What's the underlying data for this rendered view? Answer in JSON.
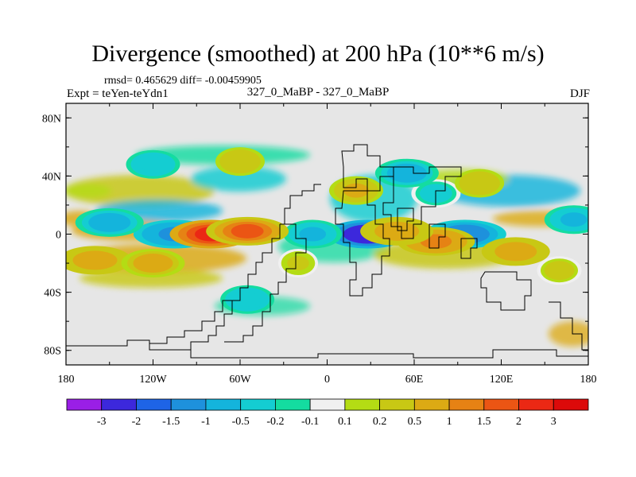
{
  "title": "Divergence (smoothed) at 200 hPa (10**6 m/s)",
  "stats_line": "rmsd= 0.465629 diff= -0.00459905",
  "expt_label": "Expt = teYen-teYdn1",
  "runs_label": "327_0_MaBP - 327_0_MaBP",
  "season": "DJF",
  "colors": {
    "background": "#ffffff",
    "map_fill": "#e6e6e6",
    "coast": "#000000"
  },
  "chart_data": {
    "type": "heatmap",
    "title": "Divergence (smoothed) at 200 hPa (10**6 m/s)",
    "xlabel": "",
    "ylabel": "",
    "xlim": [
      -180,
      180
    ],
    "ylim": [
      -90,
      90
    ],
    "x_ticks": [
      {
        "value": -180,
        "label": "180"
      },
      {
        "value": -120,
        "label": "120W"
      },
      {
        "value": -60,
        "label": "60W"
      },
      {
        "value": 0,
        "label": "0"
      },
      {
        "value": 60,
        "label": "60E"
      },
      {
        "value": 120,
        "label": "120E"
      },
      {
        "value": 180,
        "label": "180"
      }
    ],
    "y_ticks": [
      {
        "value": 80,
        "label": "80N"
      },
      {
        "value": 40,
        "label": "40N"
      },
      {
        "value": 0,
        "label": "0"
      },
      {
        "value": -40,
        "label": "40S"
      },
      {
        "value": -80,
        "label": "80S"
      }
    ],
    "colorbar": {
      "labels": [
        "-3",
        "-2",
        "-1.5",
        "-1",
        "-0.5",
        "-0.2",
        "-0.1",
        "0.1",
        "0.2",
        "0.5",
        "1",
        "1.5",
        "2",
        "3"
      ],
      "colors": [
        "#9a1fe6",
        "#3c28dc",
        "#1e64e6",
        "#1e91dc",
        "#14b4dc",
        "#14cdd2",
        "#14dca0",
        "#f0f0f0",
        "#b4dc14",
        "#c8c814",
        "#dcaa14",
        "#e68214",
        "#eb5514",
        "#eb2814",
        "#dc0a0a"
      ]
    },
    "features": [
      {
        "lon": 28,
        "lat": 0,
        "value": -3.0
      },
      {
        "lon": 95,
        "lat": 0,
        "value": -1.5
      },
      {
        "lon": -105,
        "lat": 0,
        "value": -1.2
      },
      {
        "lon": -150,
        "lat": 8,
        "value": -0.8
      },
      {
        "lon": 170,
        "lat": 10,
        "value": -0.6
      },
      {
        "lon": 75,
        "lat": 28,
        "value": -0.4
      },
      {
        "lon": 55,
        "lat": 42,
        "value": -0.7
      },
      {
        "lon": -10,
        "lat": 0,
        "value": -0.6
      },
      {
        "lon": -55,
        "lat": -45,
        "value": -0.5
      },
      {
        "lon": -120,
        "lat": 48,
        "value": -0.5
      },
      {
        "lon": -80,
        "lat": 0,
        "value": 2.0
      },
      {
        "lon": -55,
        "lat": 2,
        "value": 1.6
      },
      {
        "lon": 75,
        "lat": -5,
        "value": 1.0
      },
      {
        "lon": 48,
        "lat": 2,
        "value": 0.9
      },
      {
        "lon": 130,
        "lat": -12,
        "value": 0.8
      },
      {
        "lon": -160,
        "lat": -18,
        "value": 0.9
      },
      {
        "lon": -120,
        "lat": -20,
        "value": 0.7
      },
      {
        "lon": 20,
        "lat": 30,
        "value": 0.5
      },
      {
        "lon": -60,
        "lat": 50,
        "value": 0.4
      },
      {
        "lon": 105,
        "lat": 35,
        "value": 0.4
      },
      {
        "lon": 160,
        "lat": -25,
        "value": 0.3
      },
      {
        "lon": -20,
        "lat": -20,
        "value": 0.2
      }
    ]
  }
}
